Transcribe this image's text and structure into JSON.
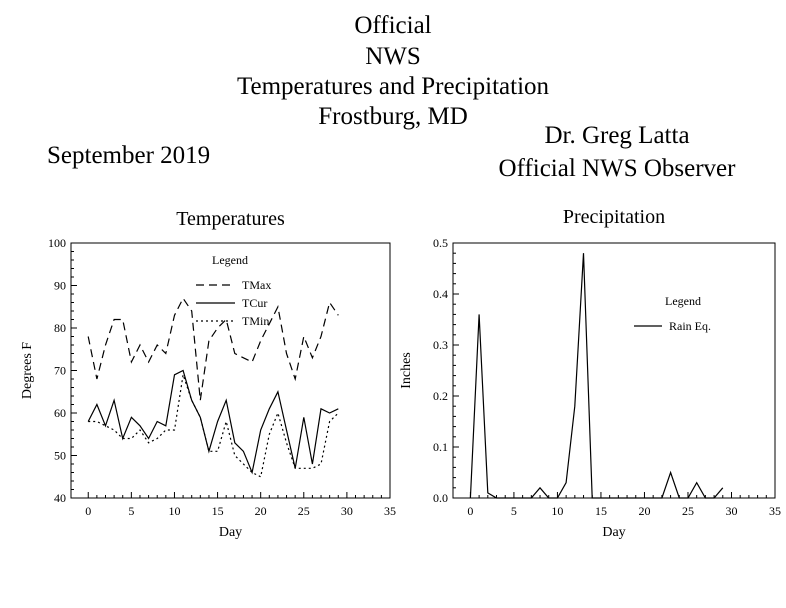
{
  "header": {
    "line1": "Official",
    "line2": "NWS",
    "line3": "Temperatures and Precipitation",
    "line4": "Frostburg, MD",
    "month": "September 2019",
    "observer_name": "Dr. Greg Latta",
    "observer_title": "Official NWS Observer"
  },
  "chart_data": [
    {
      "type": "line",
      "title": "Temperatures",
      "xlabel": "Day",
      "ylabel": "Degrees F",
      "xlim": [
        -2,
        35
      ],
      "ylim": [
        40,
        100
      ],
      "xticks": [
        0,
        5,
        10,
        15,
        20,
        25,
        30,
        35
      ],
      "yticks": [
        40,
        50,
        60,
        70,
        80,
        90,
        100
      ],
      "legend_title": "Legend",
      "legend_position": "top-center",
      "x": [
        0,
        1,
        2,
        3,
        4,
        5,
        6,
        7,
        8,
        9,
        10,
        11,
        12,
        13,
        14,
        15,
        16,
        17,
        18,
        19,
        20,
        21,
        22,
        23,
        24,
        25,
        26,
        27,
        28,
        29
      ],
      "series": [
        {
          "name": "TMax",
          "dash": "dashed",
          "values": [
            78,
            68,
            76,
            82,
            82,
            72,
            76,
            72,
            76,
            74,
            83,
            87,
            84,
            63,
            77,
            80,
            82,
            74,
            73,
            72,
            77,
            81,
            85,
            74,
            68,
            78,
            73,
            78,
            86,
            83
          ]
        },
        {
          "name": "TCur",
          "dash": "solid",
          "values": [
            58,
            62,
            57,
            63,
            54,
            59,
            57,
            54,
            58,
            57,
            69,
            70,
            63,
            59,
            51,
            58,
            63,
            53,
            51,
            46,
            56,
            61,
            65,
            56,
            47,
            59,
            48,
            61,
            60,
            61
          ]
        },
        {
          "name": "TMin",
          "dash": "dotted",
          "values": [
            58,
            58,
            57,
            56,
            54,
            54,
            56,
            53,
            54,
            56,
            56,
            69,
            63,
            59,
            51,
            51,
            58,
            50,
            48,
            46,
            45,
            55,
            60,
            53,
            47,
            47,
            47,
            48,
            58,
            60
          ]
        }
      ]
    },
    {
      "type": "line",
      "title": "Precipitation",
      "xlabel": "Day",
      "ylabel": "Inches",
      "xlim": [
        -2,
        35
      ],
      "ylim": [
        0,
        0.5
      ],
      "xticks": [
        0,
        5,
        10,
        15,
        20,
        25,
        30,
        35
      ],
      "yticks": [
        0.0,
        0.1,
        0.2,
        0.3,
        0.4,
        0.5
      ],
      "ytick_labels": [
        "0.0",
        "0.1",
        "0.2",
        "0.3",
        "0.4",
        "0.5"
      ],
      "legend_title": "Legend",
      "legend_position": "top-right",
      "x": [
        0,
        1,
        2,
        3,
        4,
        5,
        6,
        7,
        8,
        9,
        10,
        11,
        12,
        13,
        14,
        15,
        16,
        17,
        18,
        19,
        20,
        21,
        22,
        23,
        24,
        25,
        26,
        27,
        28,
        29
      ],
      "series": [
        {
          "name": "Rain Eq.",
          "dash": "solid",
          "values": [
            0,
            0.36,
            0.01,
            0,
            0,
            0,
            0,
            0,
            0.02,
            0,
            0,
            0.03,
            0.18,
            0.48,
            0,
            0,
            0,
            0,
            0,
            0,
            0,
            0,
            0,
            0.05,
            0,
            0,
            0.03,
            0,
            0,
            0.02
          ]
        }
      ]
    }
  ]
}
